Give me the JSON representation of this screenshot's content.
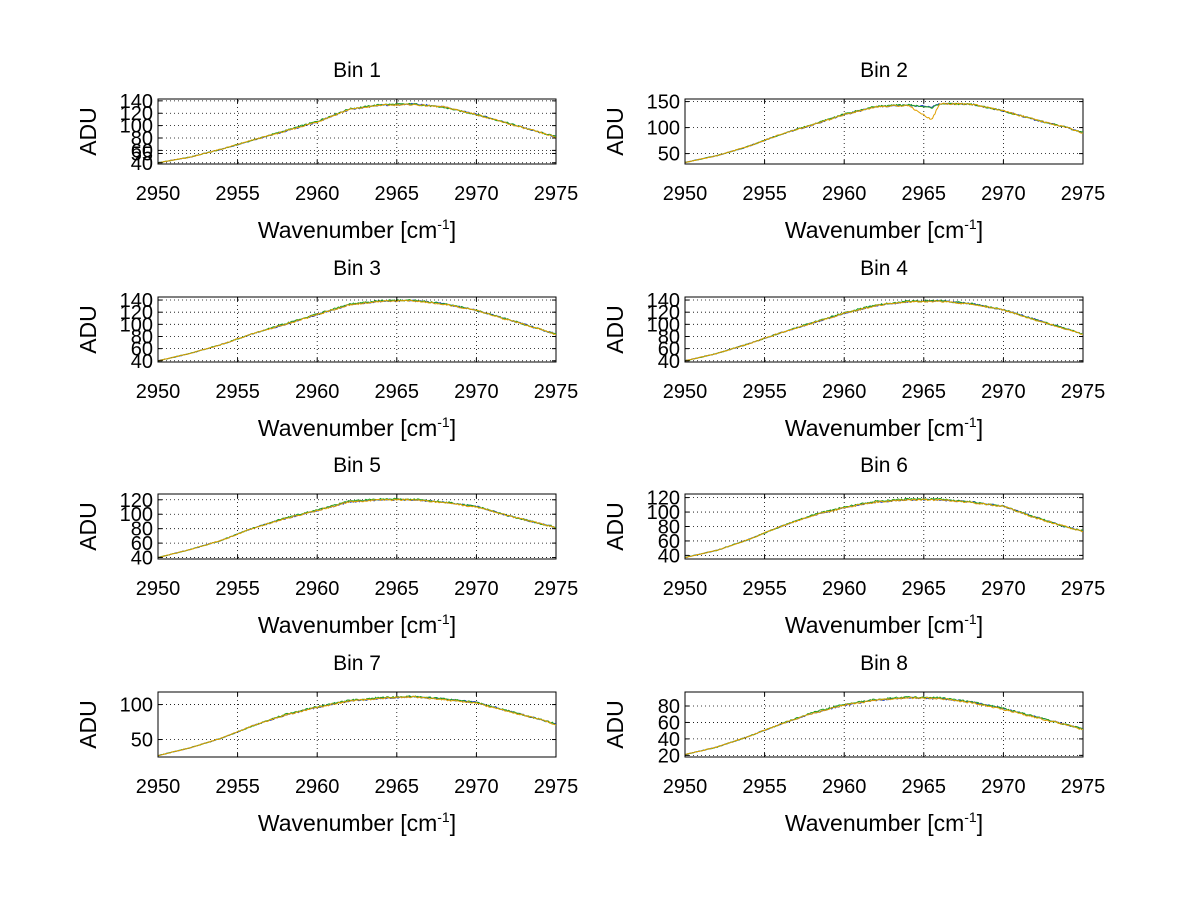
{
  "figure": {
    "background": "#ffffff"
  },
  "chart_data": [
    {
      "type": "line",
      "title": "Bin 1",
      "xlabel": "Wavenumber [cm",
      "xlabel_sup": "-1",
      "xlabel_suffix": "]",
      "ylabel": "ADU",
      "xlim": [
        2950,
        2975
      ],
      "ylim": [
        38,
        143
      ],
      "xticks": [
        2950,
        2955,
        2960,
        2965,
        2970,
        2975
      ],
      "yticks": [
        40,
        55,
        60,
        80,
        100,
        120,
        140
      ],
      "grid": true,
      "series": [
        {
          "color": "#1f3fbf",
          "x": [
            2950,
            2952,
            2954,
            2956,
            2958,
            2960,
            2962,
            2964,
            2966,
            2968,
            2970,
            2972,
            2974,
            2975
          ],
          "y": [
            40,
            49,
            62,
            77,
            91,
            106,
            126,
            133,
            135,
            130,
            118,
            104,
            89,
            82
          ]
        },
        {
          "color": "#20a020",
          "x": [
            2950,
            2952,
            2954,
            2956,
            2958,
            2960,
            2962,
            2964,
            2966,
            2968,
            2970,
            2972,
            2974,
            2975
          ],
          "y": [
            40,
            49,
            62,
            77,
            92,
            107,
            127,
            134,
            135,
            129,
            118,
            104,
            89,
            82
          ]
        },
        {
          "color": "#e0a000",
          "x": [
            2950,
            2952,
            2954,
            2956,
            2958,
            2960,
            2962,
            2964,
            2966,
            2968,
            2970,
            2972,
            2974,
            2975
          ],
          "y": [
            40,
            49,
            62,
            77,
            91,
            106,
            126,
            133,
            134,
            130,
            118,
            103,
            89,
            81
          ]
        }
      ]
    },
    {
      "type": "line",
      "title": "Bin 2",
      "xlabel": "Wavenumber [cm",
      "xlabel_sup": "-1",
      "xlabel_suffix": "]",
      "ylabel": "ADU",
      "xlim": [
        2950,
        2975
      ],
      "ylim": [
        30,
        155
      ],
      "xticks": [
        2950,
        2955,
        2960,
        2965,
        2970,
        2975
      ],
      "yticks": [
        50,
        100,
        150
      ],
      "grid": true,
      "series": [
        {
          "color": "#1f3fbf",
          "x": [
            2950,
            2952,
            2954,
            2956,
            2958,
            2960,
            2962,
            2964,
            2965.5,
            2966,
            2968,
            2970,
            2972,
            2974,
            2975
          ],
          "y": [
            33,
            46,
            64,
            87,
            105,
            125,
            140,
            143,
            140,
            146,
            145,
            132,
            115,
            100,
            90
          ]
        },
        {
          "color": "#20a020",
          "x": [
            2950,
            2952,
            2954,
            2956,
            2958,
            2960,
            2962,
            2964,
            2965.5,
            2966,
            2968,
            2970,
            2972,
            2974,
            2975
          ],
          "y": [
            33,
            46,
            64,
            87,
            106,
            126,
            141,
            144,
            138,
            146,
            145,
            132,
            115,
            100,
            90
          ]
        },
        {
          "color": "#e0a000",
          "x": [
            2950,
            2952,
            2954,
            2956,
            2958,
            2960,
            2962,
            2964,
            2965.5,
            2966,
            2968,
            2970,
            2972,
            2974,
            2975
          ],
          "y": [
            33,
            46,
            64,
            87,
            105,
            125,
            140,
            143,
            115,
            146,
            145,
            132,
            115,
            100,
            89
          ]
        }
      ]
    },
    {
      "type": "line",
      "title": "Bin 3",
      "xlabel": "Wavenumber [cm",
      "xlabel_sup": "-1",
      "xlabel_suffix": "]",
      "ylabel": "ADU",
      "xlim": [
        2950,
        2975
      ],
      "ylim": [
        38,
        145
      ],
      "xticks": [
        2950,
        2955,
        2960,
        2965,
        2970,
        2975
      ],
      "yticks": [
        40,
        60,
        80,
        100,
        120,
        140
      ],
      "grid": true,
      "series": [
        {
          "color": "#1f3fbf",
          "x": [
            2950,
            2952,
            2954,
            2956,
            2958,
            2960,
            2962,
            2964,
            2966,
            2968,
            2970,
            2972,
            2974,
            2975
          ],
          "y": [
            40,
            52,
            67,
            85,
            100,
            116,
            132,
            138,
            139,
            134,
            123,
            108,
            92,
            84
          ]
        },
        {
          "color": "#20a020",
          "x": [
            2950,
            2952,
            2954,
            2956,
            2958,
            2960,
            2962,
            2964,
            2966,
            2968,
            2970,
            2972,
            2974,
            2975
          ],
          "y": [
            40,
            52,
            67,
            85,
            101,
            117,
            133,
            139,
            140,
            134,
            123,
            108,
            92,
            84
          ]
        },
        {
          "color": "#e0a000",
          "x": [
            2950,
            2952,
            2954,
            2956,
            2958,
            2960,
            2962,
            2964,
            2966,
            2968,
            2970,
            2972,
            2974,
            2975
          ],
          "y": [
            40,
            52,
            67,
            85,
            100,
            116,
            132,
            138,
            139,
            133,
            123,
            107,
            92,
            83
          ]
        }
      ]
    },
    {
      "type": "line",
      "title": "Bin 4",
      "xlabel": "Wavenumber [cm",
      "xlabel_sup": "-1",
      "xlabel_suffix": "]",
      "ylabel": "ADU",
      "xlim": [
        2950,
        2975
      ],
      "ylim": [
        38,
        145
      ],
      "xticks": [
        2950,
        2955,
        2960,
        2965,
        2970,
        2975
      ],
      "yticks": [
        40,
        60,
        80,
        100,
        120,
        140
      ],
      "grid": true,
      "series": [
        {
          "color": "#1f3fbf",
          "x": [
            2950,
            2952,
            2954,
            2956,
            2958,
            2960,
            2962,
            2964,
            2966,
            2968,
            2970,
            2972,
            2974,
            2975
          ],
          "y": [
            40,
            52,
            68,
            86,
            102,
            118,
            131,
            137,
            139,
            134,
            124,
            108,
            92,
            84
          ]
        },
        {
          "color": "#20a020",
          "x": [
            2950,
            2952,
            2954,
            2956,
            2958,
            2960,
            2962,
            2964,
            2966,
            2968,
            2970,
            2972,
            2974,
            2975
          ],
          "y": [
            40,
            52,
            68,
            86,
            103,
            119,
            132,
            138,
            139,
            134,
            124,
            108,
            92,
            84
          ]
        },
        {
          "color": "#e0a000",
          "x": [
            2950,
            2952,
            2954,
            2956,
            2958,
            2960,
            2962,
            2964,
            2966,
            2968,
            2970,
            2972,
            2974,
            2975
          ],
          "y": [
            40,
            52,
            68,
            86,
            102,
            118,
            131,
            137,
            138,
            133,
            124,
            107,
            92,
            83
          ]
        }
      ]
    },
    {
      "type": "line",
      "title": "Bin 5",
      "xlabel": "Wavenumber [cm",
      "xlabel_sup": "-1",
      "xlabel_suffix": "]",
      "ylabel": "ADU",
      "xlim": [
        2950,
        2975
      ],
      "ylim": [
        38,
        128
      ],
      "xticks": [
        2950,
        2955,
        2960,
        2965,
        2970,
        2975
      ],
      "yticks": [
        40,
        60,
        80,
        100,
        120
      ],
      "grid": true,
      "series": [
        {
          "color": "#1f3fbf",
          "x": [
            2950,
            2952,
            2954,
            2956,
            2958,
            2960,
            2962,
            2964,
            2966,
            2968,
            2970,
            2972,
            2974,
            2975
          ],
          "y": [
            40,
            51,
            64,
            81,
            94,
            105,
            117,
            120,
            120,
            117,
            111,
            98,
            87,
            82
          ]
        },
        {
          "color": "#20a020",
          "x": [
            2950,
            2952,
            2954,
            2956,
            2958,
            2960,
            2962,
            2964,
            2966,
            2968,
            2970,
            2972,
            2974,
            2975
          ],
          "y": [
            40,
            51,
            64,
            81,
            95,
            106,
            118,
            121,
            121,
            117,
            111,
            98,
            87,
            82
          ]
        },
        {
          "color": "#e0a000",
          "x": [
            2950,
            2952,
            2954,
            2956,
            2958,
            2960,
            2962,
            2964,
            2966,
            2968,
            2970,
            2972,
            2974,
            2975
          ],
          "y": [
            40,
            51,
            64,
            81,
            94,
            105,
            117,
            120,
            120,
            116,
            110,
            98,
            87,
            81
          ]
        }
      ]
    },
    {
      "type": "line",
      "title": "Bin 6",
      "xlabel": "Wavenumber [cm",
      "xlabel_sup": "-1",
      "xlabel_suffix": "]",
      "ylabel": "ADU",
      "xlim": [
        2950,
        2975
      ],
      "ylim": [
        35,
        125
      ],
      "xticks": [
        2950,
        2955,
        2960,
        2965,
        2970,
        2975
      ],
      "yticks": [
        40,
        60,
        80,
        100,
        120
      ],
      "grid": true,
      "series": [
        {
          "color": "#1f3fbf",
          "x": [
            2950,
            2952,
            2954,
            2956,
            2958,
            2960,
            2962,
            2964,
            2966,
            2968,
            2970,
            2972,
            2974,
            2975
          ],
          "y": [
            37,
            47,
            62,
            80,
            95,
            106,
            114,
            117,
            117,
            114,
            108,
            93,
            79,
            74
          ]
        },
        {
          "color": "#20a020",
          "x": [
            2950,
            2952,
            2954,
            2956,
            2958,
            2960,
            2962,
            2964,
            2966,
            2968,
            2970,
            2972,
            2974,
            2975
          ],
          "y": [
            37,
            47,
            62,
            80,
            96,
            107,
            115,
            118,
            118,
            114,
            108,
            93,
            79,
            74
          ]
        },
        {
          "color": "#e0a000",
          "x": [
            2950,
            2952,
            2954,
            2956,
            2958,
            2960,
            2962,
            2964,
            2966,
            2968,
            2970,
            2972,
            2974,
            2975
          ],
          "y": [
            37,
            47,
            62,
            80,
            95,
            106,
            114,
            117,
            117,
            113,
            108,
            92,
            79,
            73
          ]
        }
      ]
    },
    {
      "type": "line",
      "title": "Bin 7",
      "xlabel": "Wavenumber [cm",
      "xlabel_sup": "-1",
      "xlabel_suffix": "]",
      "ylabel": "ADU",
      "xlim": [
        2950,
        2975
      ],
      "ylim": [
        25,
        118
      ],
      "xticks": [
        2950,
        2955,
        2960,
        2965,
        2970,
        2975
      ],
      "yticks": [
        50,
        100
      ],
      "grid": true,
      "series": [
        {
          "color": "#1f3fbf",
          "x": [
            2950,
            2952,
            2954,
            2956,
            2958,
            2960,
            2962,
            2964,
            2966,
            2968,
            2970,
            2972,
            2974,
            2975
          ],
          "y": [
            27,
            38,
            52,
            70,
            85,
            96,
            105,
            109,
            111,
            108,
            103,
            91,
            79,
            72
          ]
        },
        {
          "color": "#20a020",
          "x": [
            2950,
            2952,
            2954,
            2956,
            2958,
            2960,
            2962,
            2964,
            2966,
            2968,
            2970,
            2972,
            2974,
            2975
          ],
          "y": [
            27,
            38,
            52,
            70,
            86,
            97,
            106,
            110,
            112,
            108,
            103,
            91,
            79,
            72
          ]
        },
        {
          "color": "#e0a000",
          "x": [
            2950,
            2952,
            2954,
            2956,
            2958,
            2960,
            2962,
            2964,
            2966,
            2968,
            2970,
            2972,
            2974,
            2975
          ],
          "y": [
            27,
            38,
            52,
            70,
            85,
            96,
            105,
            109,
            111,
            107,
            102,
            90,
            79,
            71
          ]
        }
      ]
    },
    {
      "type": "line",
      "title": "Bin 8",
      "xlabel": "Wavenumber [cm",
      "xlabel_sup": "-1",
      "xlabel_suffix": "]",
      "ylabel": "ADU",
      "xlim": [
        2950,
        2975
      ],
      "ylim": [
        18,
        97
      ],
      "xticks": [
        2950,
        2955,
        2960,
        2965,
        2970,
        2975
      ],
      "yticks": [
        20,
        40,
        60,
        80
      ],
      "grid": true,
      "series": [
        {
          "color": "#1f3fbf",
          "x": [
            2950,
            2952,
            2954,
            2956,
            2958,
            2960,
            2962,
            2964,
            2966,
            2968,
            2970,
            2972,
            2974,
            2975
          ],
          "y": [
            21,
            30,
            43,
            58,
            71,
            81,
            87,
            90,
            89,
            85,
            77,
            67,
            57,
            52
          ]
        },
        {
          "color": "#20a020",
          "x": [
            2950,
            2952,
            2954,
            2956,
            2958,
            2960,
            2962,
            2964,
            2966,
            2968,
            2970,
            2972,
            2974,
            2975
          ],
          "y": [
            21,
            30,
            43,
            58,
            72,
            82,
            88,
            91,
            90,
            85,
            77,
            67,
            57,
            52
          ]
        },
        {
          "color": "#e0a000",
          "x": [
            2950,
            2952,
            2954,
            2956,
            2958,
            2960,
            2962,
            2964,
            2966,
            2968,
            2970,
            2972,
            2974,
            2975
          ],
          "y": [
            21,
            30,
            43,
            58,
            71,
            81,
            87,
            90,
            89,
            84,
            76,
            66,
            57,
            51
          ]
        }
      ]
    }
  ]
}
